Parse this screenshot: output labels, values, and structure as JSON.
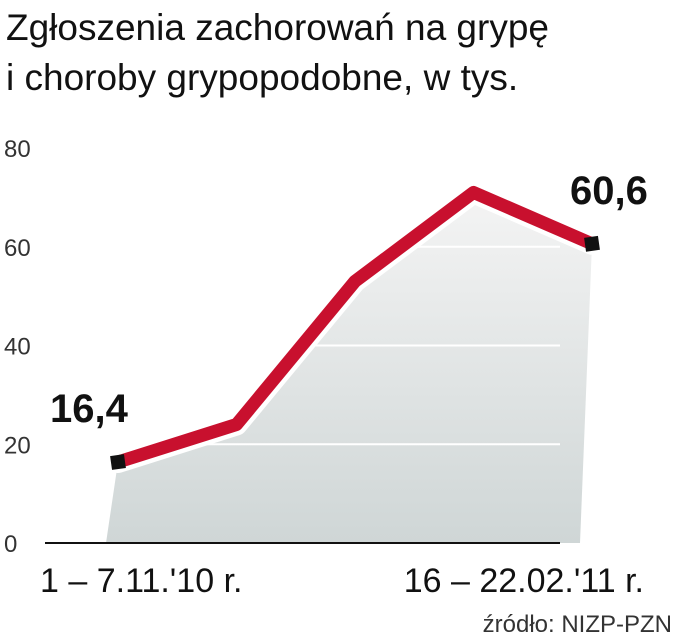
{
  "chart_data": {
    "type": "line",
    "title_lines": [
      "Zgłoszenia zachorowań na grypę",
      "i choroby grypopodobne, w tys."
    ],
    "categories": [
      "1 – 7.11.'10 r.",
      null,
      null,
      null,
      "16 – 22.02.'11 r."
    ],
    "series": [
      {
        "color": "#c8102e",
        "values": [
          16.4,
          24,
          53,
          71,
          60.6
        ],
        "value_labels": [
          "16,4",
          null,
          null,
          null,
          "60,6"
        ]
      }
    ],
    "ylim": [
      0,
      80
    ],
    "yticks": [
      0,
      20,
      40,
      60,
      80
    ],
    "grid": true,
    "source": "źródło: NIZP-PZN"
  }
}
